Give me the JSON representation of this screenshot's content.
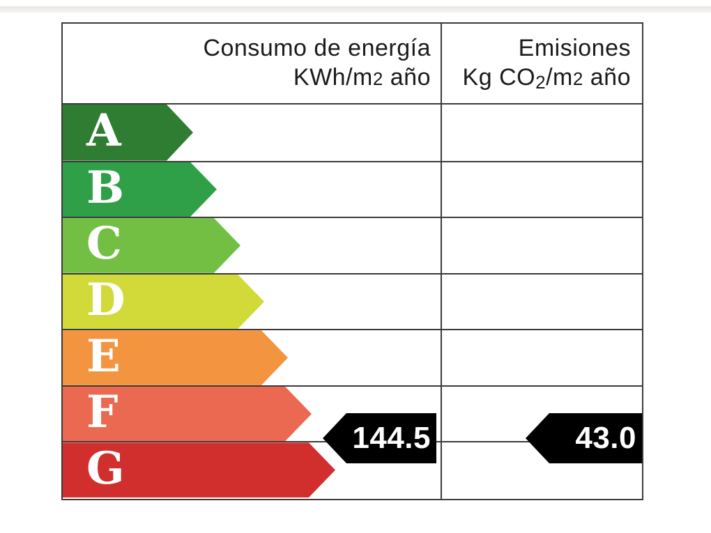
{
  "header": {
    "consumption": {
      "line1": "Consumo de energía",
      "line2_prefix": "KWh/m",
      "line2_exp": "2",
      "line2_suffix": " año"
    },
    "emissions": {
      "line1": "Emisiones",
      "line2_prefix": "Kg CO",
      "line2_sub": "2",
      "line2_mid": "/m",
      "line2_exp": "2",
      "line2_suffix": " año"
    }
  },
  "bands": [
    {
      "label": "A",
      "color": "#2e7d33"
    },
    {
      "label": "B",
      "color": "#2fa048"
    },
    {
      "label": "C",
      "color": "#72bf44"
    },
    {
      "label": "D",
      "color": "#d2da3a"
    },
    {
      "label": "E",
      "color": "#f29440"
    },
    {
      "label": "F",
      "color": "#eb6951"
    },
    {
      "label": "G",
      "color": "#d02f2e"
    }
  ],
  "ratings": {
    "consumption": {
      "value": "144.5",
      "band": "E",
      "arrow_color": "#000000",
      "text_color": "#ffffff"
    },
    "emissions": {
      "value": "43.0",
      "band": "E",
      "arrow_color": "#000000",
      "text_color": "#ffffff"
    }
  },
  "style": {
    "border_color": "#3a3a3a",
    "header_text_color": "#1b1b1b",
    "band_letter_color": "#ffffff"
  },
  "chart_data": {
    "type": "bar",
    "title": "Etiqueta de eficiencia energética",
    "categories": [
      "A",
      "B",
      "C",
      "D",
      "E",
      "F",
      "G"
    ],
    "band_colors": [
      "#2e7d33",
      "#2fa048",
      "#72bf44",
      "#d2da3a",
      "#f29440",
      "#eb6951",
      "#d02f2e"
    ],
    "columns": [
      "Consumo de energía KWh/m2 año",
      "Emisiones Kg CO2/m2 año"
    ],
    "series": [
      {
        "name": "Consumo de energía KWh/m2 año",
        "rated_band": "E",
        "value": 144.5
      },
      {
        "name": "Emisiones Kg CO2/m2 año",
        "rated_band": "E",
        "value": 43.0
      }
    ],
    "legend_position": "none",
    "grid": false
  }
}
